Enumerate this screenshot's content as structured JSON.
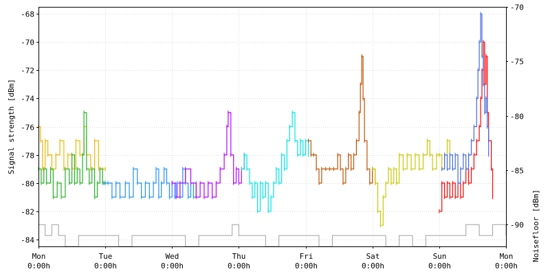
{
  "chart_data": {
    "type": "line",
    "title": "",
    "xlabel": "",
    "ylabel": "Signal strength [dBm]",
    "y2label": "Noisefloor [dBm]",
    "xlim_days": [
      0,
      7
    ],
    "ylim": [
      -84.5,
      -67.5
    ],
    "y2lim": [
      -92,
      -70
    ],
    "grid": true,
    "legend": "none",
    "x_ticks": [
      {
        "day": 0,
        "label1": "Mon",
        "label2": "0:00h"
      },
      {
        "day": 1,
        "label1": "Tue",
        "label2": "0:00h"
      },
      {
        "day": 2,
        "label1": "Wed",
        "label2": "0:00h"
      },
      {
        "day": 3,
        "label1": "Thu",
        "label2": "0:00h"
      },
      {
        "day": 4,
        "label1": "Fri",
        "label2": "0:00h"
      },
      {
        "day": 5,
        "label1": "Sat",
        "label2": "0:00h"
      },
      {
        "day": 6,
        "label1": "Sun",
        "label2": "0:00h"
      },
      {
        "day": 7,
        "label1": "Mon",
        "label2": "0:00h"
      }
    ],
    "y_ticks": [
      "-68",
      "-70",
      "-72",
      "-74",
      "-76",
      "-78",
      "-80",
      "-82",
      "-84"
    ],
    "y2_ticks": [
      "-70",
      "-75",
      "-80",
      "-85",
      "-90"
    ],
    "series": [
      {
        "color": "#f4b400",
        "points": [
          [
            0.0,
            -76
          ],
          [
            0.03,
            -77
          ],
          [
            0.06,
            -79
          ],
          [
            0.1,
            -77
          ],
          [
            0.14,
            -78
          ],
          [
            0.2,
            -79
          ],
          [
            0.26,
            -78
          ],
          [
            0.32,
            -77
          ],
          [
            0.38,
            -79
          ],
          [
            0.44,
            -78
          ],
          [
            0.5,
            -79
          ],
          [
            0.56,
            -77
          ],
          [
            0.62,
            -78
          ],
          [
            0.68,
            -76
          ],
          [
            0.72,
            -78
          ],
          [
            0.78,
            -79
          ],
          [
            0.84,
            -77
          ],
          [
            0.9,
            -79
          ],
          [
            0.96,
            -79
          ],
          [
            1.0,
            -79
          ]
        ]
      },
      {
        "color": "#22b222",
        "points": [
          [
            0.0,
            -79
          ],
          [
            0.04,
            -80
          ],
          [
            0.08,
            -79
          ],
          [
            0.12,
            -80
          ],
          [
            0.18,
            -79
          ],
          [
            0.22,
            -81
          ],
          [
            0.28,
            -80
          ],
          [
            0.34,
            -81
          ],
          [
            0.4,
            -79
          ],
          [
            0.46,
            -80
          ],
          [
            0.5,
            -78
          ],
          [
            0.54,
            -80
          ],
          [
            0.58,
            -79
          ],
          [
            0.62,
            -80
          ],
          [
            0.66,
            -78
          ],
          [
            0.68,
            -75
          ],
          [
            0.72,
            -79
          ],
          [
            0.76,
            -80
          ],
          [
            0.8,
            -79
          ],
          [
            0.84,
            -81
          ],
          [
            0.88,
            -80
          ],
          [
            0.92,
            -79
          ],
          [
            0.96,
            -80
          ],
          [
            1.0,
            -80
          ]
        ]
      },
      {
        "color": "#1e90ff",
        "points": [
          [
            0.98,
            -80
          ],
          [
            1.04,
            -80
          ],
          [
            1.1,
            -81
          ],
          [
            1.16,
            -80
          ],
          [
            1.22,
            -81
          ],
          [
            1.3,
            -80
          ],
          [
            1.36,
            -81
          ],
          [
            1.42,
            -79
          ],
          [
            1.48,
            -80
          ],
          [
            1.54,
            -81
          ],
          [
            1.6,
            -80
          ],
          [
            1.66,
            -81
          ],
          [
            1.72,
            -80
          ],
          [
            1.76,
            -79
          ],
          [
            1.8,
            -81
          ],
          [
            1.84,
            -80
          ],
          [
            1.88,
            -79
          ],
          [
            1.92,
            -80
          ],
          [
            1.96,
            -81
          ],
          [
            2.0,
            -80
          ]
        ]
      },
      {
        "color": "#1e90ff",
        "points": [
          [
            2.0,
            -80
          ],
          [
            2.04,
            -81
          ],
          [
            2.08,
            -80
          ],
          [
            2.12,
            -81
          ],
          [
            2.16,
            -79
          ],
          [
            2.2,
            -80
          ],
          [
            2.24,
            -81
          ],
          [
            2.28,
            -80
          ],
          [
            2.32,
            -81
          ],
          [
            2.36,
            -80
          ]
        ]
      },
      {
        "color": "#b400ff",
        "points": [
          [
            2.0,
            -80
          ],
          [
            2.06,
            -81
          ],
          [
            2.12,
            -80
          ],
          [
            2.2,
            -79
          ],
          [
            2.28,
            -80
          ],
          [
            2.36,
            -81
          ],
          [
            2.42,
            -80
          ],
          [
            2.48,
            -81
          ],
          [
            2.54,
            -80
          ],
          [
            2.6,
            -81
          ],
          [
            2.66,
            -80
          ],
          [
            2.72,
            -79
          ],
          [
            2.78,
            -78
          ],
          [
            2.82,
            -76
          ],
          [
            2.84,
            -75
          ],
          [
            2.88,
            -78
          ],
          [
            2.92,
            -80
          ],
          [
            2.96,
            -79
          ],
          [
            3.0,
            -80
          ],
          [
            3.04,
            -79
          ],
          [
            3.08,
            -78
          ]
        ]
      },
      {
        "color": "#00e5e5",
        "points": [
          [
            3.04,
            -79
          ],
          [
            3.08,
            -78
          ],
          [
            3.12,
            -79
          ],
          [
            3.16,
            -80
          ],
          [
            3.2,
            -81
          ],
          [
            3.24,
            -80
          ],
          [
            3.28,
            -82
          ],
          [
            3.32,
            -80
          ],
          [
            3.36,
            -81
          ],
          [
            3.4,
            -80
          ],
          [
            3.44,
            -82
          ],
          [
            3.48,
            -81
          ],
          [
            3.52,
            -80
          ],
          [
            3.56,
            -79
          ],
          [
            3.6,
            -80
          ],
          [
            3.64,
            -78
          ],
          [
            3.68,
            -79
          ],
          [
            3.72,
            -77
          ],
          [
            3.76,
            -76
          ],
          [
            3.8,
            -75
          ],
          [
            3.84,
            -77
          ],
          [
            3.88,
            -78
          ],
          [
            3.92,
            -77
          ],
          [
            3.96,
            -78
          ],
          [
            4.0,
            -77
          ],
          [
            4.04,
            -78
          ]
        ]
      },
      {
        "color": "#c05000",
        "points": [
          [
            4.04,
            -77
          ],
          [
            4.08,
            -78
          ],
          [
            4.12,
            -78
          ],
          [
            4.16,
            -79
          ],
          [
            4.2,
            -80
          ],
          [
            4.24,
            -79
          ],
          [
            4.3,
            -79
          ],
          [
            4.36,
            -79
          ],
          [
            4.42,
            -79
          ],
          [
            4.48,
            -78
          ],
          [
            4.52,
            -79
          ],
          [
            4.56,
            -80
          ],
          [
            4.6,
            -79
          ],
          [
            4.64,
            -78
          ],
          [
            4.68,
            -79
          ],
          [
            4.72,
            -78
          ],
          [
            4.76,
            -77
          ],
          [
            4.8,
            -75
          ],
          [
            4.82,
            -73
          ],
          [
            4.84,
            -71
          ],
          [
            4.86,
            -74
          ],
          [
            4.88,
            -77
          ],
          [
            4.92,
            -79
          ],
          [
            4.96,
            -80
          ],
          [
            5.0,
            -79
          ],
          [
            5.04,
            -80
          ]
        ]
      },
      {
        "color": "#c8c800",
        "points": [
          [
            5.0,
            -79
          ],
          [
            5.04,
            -80
          ],
          [
            5.08,
            -82
          ],
          [
            5.12,
            -83
          ],
          [
            5.16,
            -81
          ],
          [
            5.2,
            -80
          ],
          [
            5.24,
            -79
          ],
          [
            5.28,
            -80
          ],
          [
            5.32,
            -79
          ],
          [
            5.36,
            -80
          ],
          [
            5.4,
            -78
          ],
          [
            5.46,
            -79
          ],
          [
            5.52,
            -78
          ],
          [
            5.58,
            -79
          ],
          [
            5.64,
            -78
          ],
          [
            5.7,
            -79
          ],
          [
            5.76,
            -78
          ],
          [
            5.82,
            -77
          ],
          [
            5.86,
            -78
          ],
          [
            5.9,
            -79
          ],
          [
            5.96,
            -78
          ],
          [
            6.0,
            -78
          ],
          [
            6.04,
            -79
          ],
          [
            6.08,
            -78
          ],
          [
            6.12,
            -77
          ],
          [
            6.16,
            -78
          ]
        ]
      },
      {
        "color": "#ff0000",
        "points": [
          [
            6.0,
            -82
          ],
          [
            6.04,
            -80
          ],
          [
            6.08,
            -81
          ],
          [
            6.12,
            -80
          ],
          [
            6.16,
            -81
          ],
          [
            6.2,
            -80
          ],
          [
            6.24,
            -81
          ],
          [
            6.28,
            -80
          ],
          [
            6.32,
            -81
          ],
          [
            6.36,
            -80
          ],
          [
            6.4,
            -79
          ],
          [
            6.44,
            -80
          ],
          [
            6.48,
            -79
          ],
          [
            6.52,
            -78
          ],
          [
            6.56,
            -77
          ],
          [
            6.6,
            -76
          ],
          [
            6.62,
            -74
          ],
          [
            6.64,
            -72
          ],
          [
            6.66,
            -70
          ],
          [
            6.68,
            -73
          ],
          [
            6.7,
            -71
          ],
          [
            6.72,
            -75
          ],
          [
            6.74,
            -77
          ],
          [
            6.78,
            -79
          ],
          [
            6.8,
            -81
          ]
        ]
      },
      {
        "color": "#4169e1",
        "points": [
          [
            6.04,
            -79
          ],
          [
            6.08,
            -78
          ],
          [
            6.12,
            -79
          ],
          [
            6.16,
            -78
          ],
          [
            6.2,
            -79
          ],
          [
            6.24,
            -78
          ],
          [
            6.28,
            -80
          ],
          [
            6.32,
            -79
          ],
          [
            6.36,
            -78
          ],
          [
            6.4,
            -79
          ],
          [
            6.44,
            -78
          ],
          [
            6.48,
            -77
          ],
          [
            6.52,
            -76
          ],
          [
            6.56,
            -74
          ],
          [
            6.58,
            -72
          ],
          [
            6.6,
            -70
          ],
          [
            6.62,
            -68
          ],
          [
            6.64,
            -71
          ],
          [
            6.66,
            -73
          ],
          [
            6.68,
            -75
          ],
          [
            6.7,
            -74
          ],
          [
            6.72,
            -76
          ],
          [
            6.74,
            -78
          ]
        ]
      }
    ],
    "noisefloor": {
      "color": "#a0a0a0",
      "points": [
        [
          0.0,
          -90
        ],
        [
          0.1,
          -91
        ],
        [
          0.2,
          -90
        ],
        [
          0.3,
          -91
        ],
        [
          0.4,
          -92
        ],
        [
          0.6,
          -91
        ],
        [
          0.8,
          -91
        ],
        [
          1.0,
          -91
        ],
        [
          1.2,
          -92
        ],
        [
          1.4,
          -91
        ],
        [
          1.6,
          -91
        ],
        [
          1.8,
          -91
        ],
        [
          2.0,
          -91
        ],
        [
          2.2,
          -92
        ],
        [
          2.4,
          -91
        ],
        [
          2.6,
          -91
        ],
        [
          2.8,
          -91
        ],
        [
          2.9,
          -90
        ],
        [
          3.0,
          -91
        ],
        [
          3.2,
          -91
        ],
        [
          3.4,
          -92
        ],
        [
          3.6,
          -91
        ],
        [
          3.8,
          -91
        ],
        [
          4.0,
          -91
        ],
        [
          4.2,
          -92
        ],
        [
          4.4,
          -91
        ],
        [
          4.6,
          -91
        ],
        [
          4.8,
          -91
        ],
        [
          5.0,
          -91
        ],
        [
          5.2,
          -92
        ],
        [
          5.4,
          -91
        ],
        [
          5.6,
          -92
        ],
        [
          5.8,
          -91
        ],
        [
          6.0,
          -91
        ],
        [
          6.2,
          -91
        ],
        [
          6.4,
          -90
        ],
        [
          6.6,
          -91
        ],
        [
          6.8,
          -90
        ],
        [
          7.0,
          -91
        ]
      ]
    }
  }
}
